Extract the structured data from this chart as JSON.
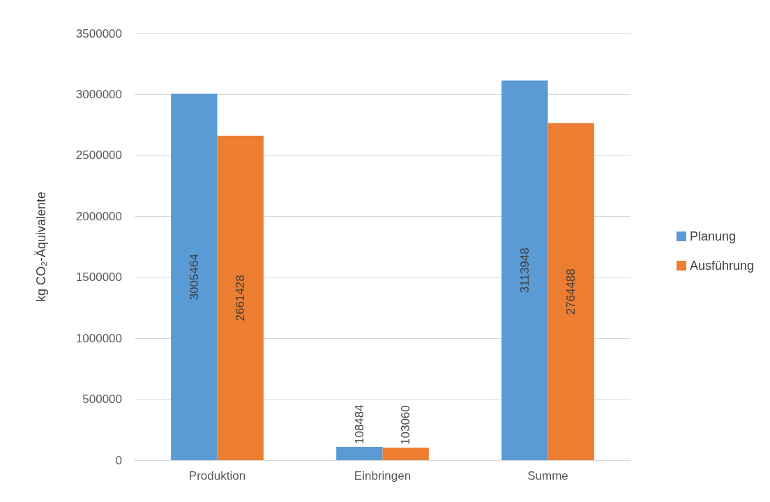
{
  "chart_data": {
    "type": "bar",
    "ylabel": "kg CO₂-Äquivalente",
    "categories": [
      "Produktion",
      "Einbringen",
      "Summe"
    ],
    "series": [
      {
        "name": "Planung",
        "color": "#5b9bd5",
        "values": [
          3005464,
          108484,
          3113948
        ]
      },
      {
        "name": "Ausführung",
        "color": "#ed7d31",
        "values": [
          2661428,
          103060,
          2764488
        ]
      }
    ],
    "ylim": [
      0,
      3500000
    ],
    "yticks": [
      0,
      500000,
      1000000,
      1500000,
      2000000,
      2500000,
      3000000,
      3500000
    ],
    "grid": "y",
    "legend": "right",
    "data_labels": true
  }
}
